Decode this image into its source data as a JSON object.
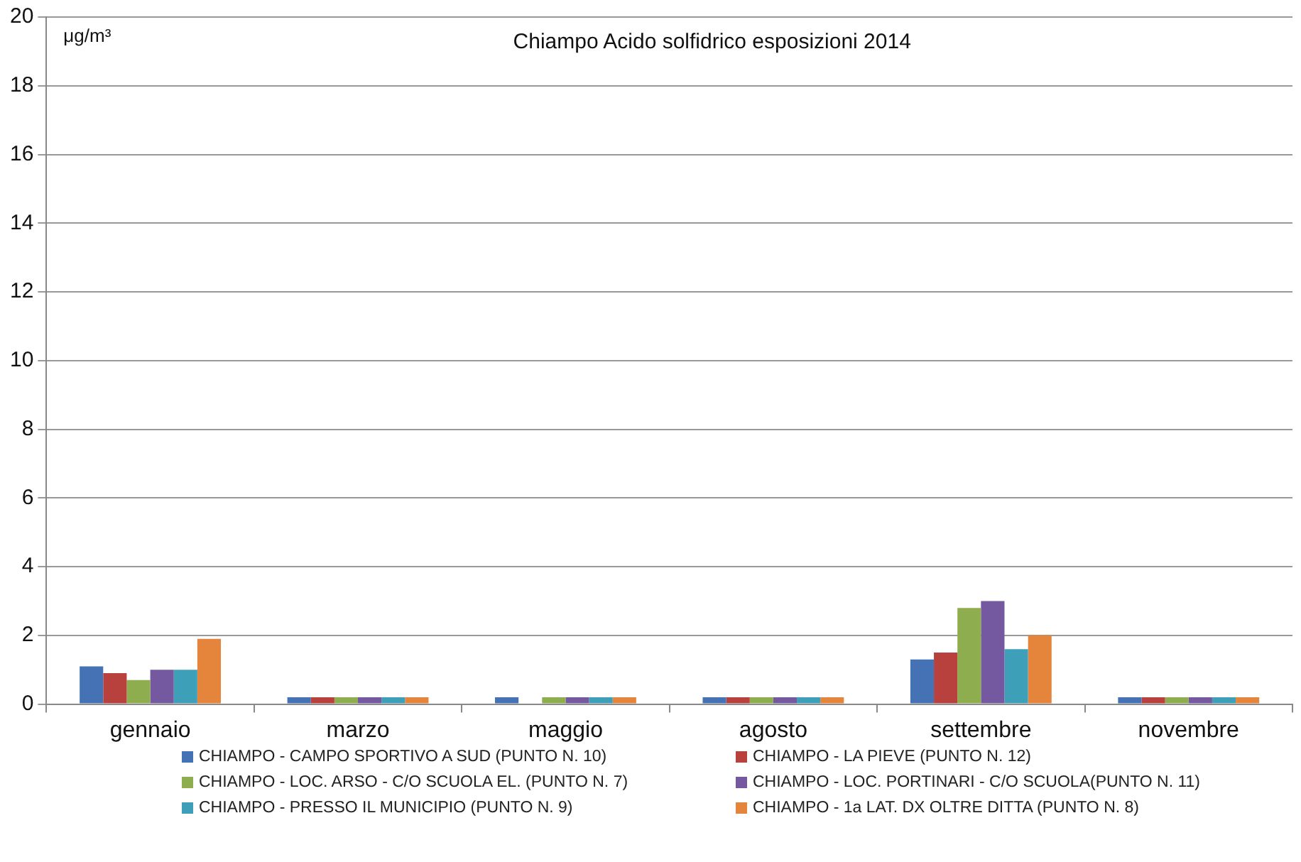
{
  "chart_data": {
    "type": "bar",
    "title": "Chiampo Acido solfidrico esposizioni 2014",
    "ylabel": "μg/m³",
    "categories": [
      "gennaio",
      "marzo",
      "maggio",
      "agosto",
      "settembre",
      "novembre"
    ],
    "series": [
      {
        "name": "CHIAMPO - CAMPO SPORTIVO A SUD (PUNTO N. 10)",
        "color": "#4472b4",
        "values": [
          1.1,
          0.2,
          0.2,
          0.2,
          1.3,
          0.2
        ]
      },
      {
        "name": "CHIAMPO - LA PIEVE (PUNTO N. 12)",
        "color": "#b8403d",
        "values": [
          0.9,
          0.2,
          null,
          0.2,
          1.5,
          0.2
        ]
      },
      {
        "name": "CHIAMPO - LOC. ARSO - C/O SCUOLA EL. (PUNTO N. 7)",
        "color": "#8ead4f",
        "values": [
          0.7,
          0.2,
          0.2,
          0.2,
          2.8,
          0.2
        ]
      },
      {
        "name": "CHIAMPO - LOC. PORTINARI - C/O SCUOLA(PUNTO N. 11)",
        "color": "#7559a0",
        "values": [
          1.0,
          0.2,
          0.2,
          0.2,
          3.0,
          0.2
        ]
      },
      {
        "name": "CHIAMPO - PRESSO IL MUNICIPIO (PUNTO N. 9)",
        "color": "#3da0b8",
        "values": [
          1.0,
          0.2,
          0.2,
          0.2,
          1.6,
          0.2
        ]
      },
      {
        "name": "CHIAMPO - 1a LAT. DX OLTRE DITTA (PUNTO N. 8)",
        "color": "#e5853b",
        "values": [
          1.9,
          0.2,
          0.2,
          0.2,
          2.0,
          0.2
        ]
      }
    ],
    "ylim": [
      0,
      20
    ],
    "yticks": [
      0,
      2,
      4,
      6,
      8,
      10,
      12,
      14,
      16,
      18,
      20
    ],
    "grid": "y",
    "legend": "bottom"
  }
}
